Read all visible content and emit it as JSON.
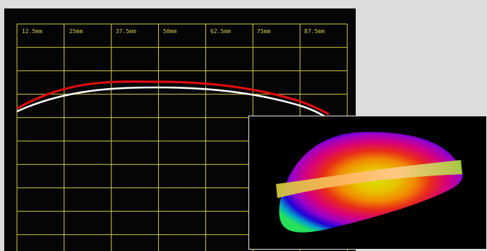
{
  "main_view": {
    "grid_color": "#d6cd3c",
    "tick_labels": [
      "12.5mm",
      "25mm",
      "37.5mm",
      "50mm",
      "62.5mm",
      "75mm",
      "87.5mm"
    ],
    "profile_curves": [
      {
        "name": "red-profile",
        "color": "#e00d0d"
      },
      {
        "name": "white-profile",
        "color": "#ffffff"
      }
    ]
  },
  "inset_view": {
    "description_icon": "3d-surface-map",
    "band_color": "#d7c44a"
  }
}
